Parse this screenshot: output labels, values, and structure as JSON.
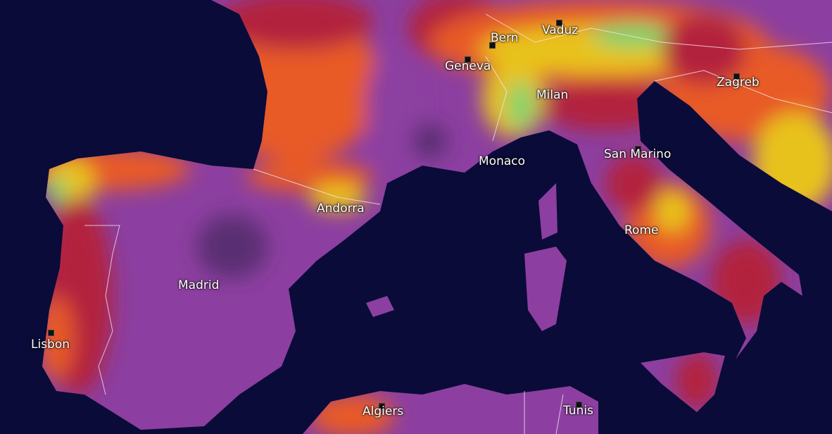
{
  "map": {
    "colors": {
      "sea": "#0a0b38",
      "very_high": "#8c3fa0",
      "very_high_dark": "#5a2d72",
      "high": "#b3203e",
      "medium": "#e85a28",
      "low": "#e8c21e",
      "very_low": "#7ed46e",
      "borders": "#f2e6ee"
    },
    "cities": [
      {
        "name": "Bern"
      },
      {
        "name": "Vaduz"
      },
      {
        "name": "Geneva"
      },
      {
        "name": "Milan"
      },
      {
        "name": "Zagreb"
      },
      {
        "name": "Monaco"
      },
      {
        "name": "San Marino"
      },
      {
        "name": "Andorra"
      },
      {
        "name": "Rome"
      },
      {
        "name": "Madrid"
      },
      {
        "name": "Lisbon"
      },
      {
        "name": "Algiers"
      },
      {
        "name": "Tunis"
      }
    ]
  }
}
